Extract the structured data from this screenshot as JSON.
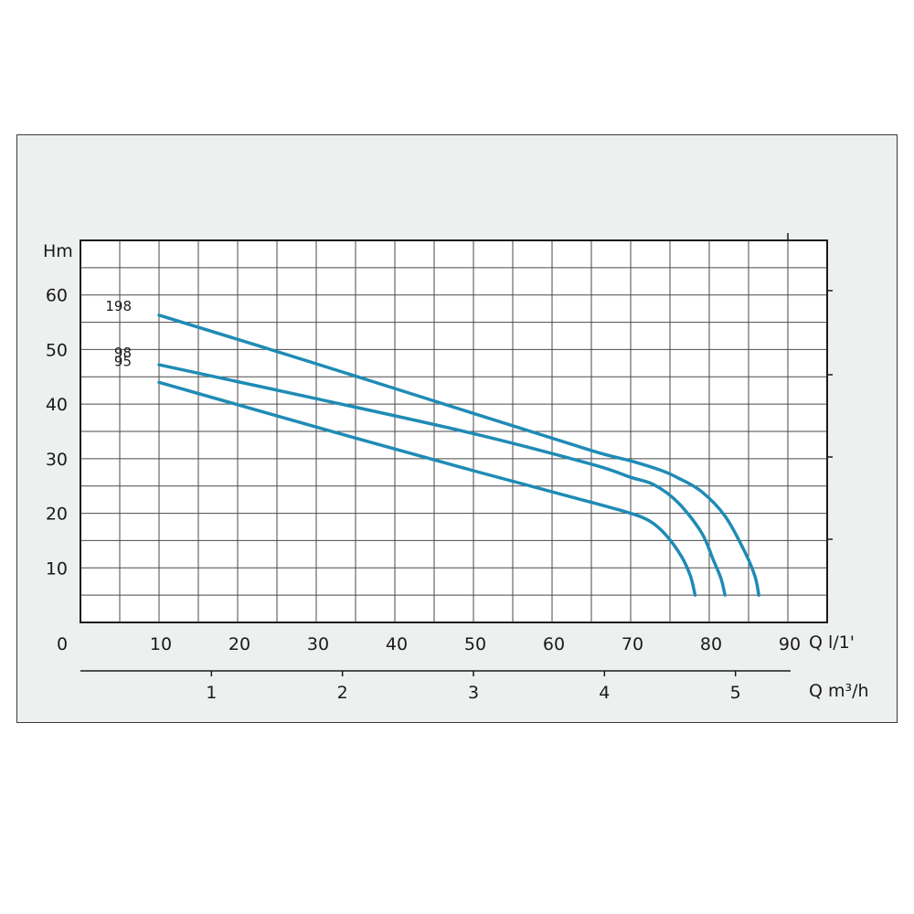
{
  "chart_data": {
    "type": "line",
    "title": "",
    "ylabel": "Hm",
    "xlabel": "Q l/1'",
    "x2label": "Q m³/h",
    "x_origin_label": "0",
    "x_ticks": [
      10,
      20,
      30,
      40,
      50,
      60,
      70,
      80,
      90
    ],
    "y_ticks": [
      10,
      20,
      30,
      40,
      50,
      60
    ],
    "x2_ticks": [
      1,
      2,
      3,
      4,
      5
    ],
    "xlim": [
      0,
      95
    ],
    "ylim": [
      0,
      70
    ],
    "grid": true,
    "line_color": "#1f8bb5",
    "series": [
      {
        "name": "198",
        "points": [
          [
            10,
            56.3
          ],
          [
            30,
            47.4
          ],
          [
            50,
            38.3
          ],
          [
            65,
            31.5
          ],
          [
            70,
            29.6
          ],
          [
            74,
            27.8
          ],
          [
            76,
            26.5
          ],
          [
            79,
            24.0
          ],
          [
            82,
            19.5
          ],
          [
            84.5,
            13.0
          ],
          [
            85.8,
            8.5
          ],
          [
            86.3,
            5.0
          ]
        ]
      },
      {
        "name": "98",
        "points": [
          [
            10,
            47.2
          ],
          [
            30,
            41.0
          ],
          [
            50,
            34.6
          ],
          [
            65,
            29.0
          ],
          [
            70,
            26.6
          ],
          [
            73,
            25.2
          ],
          [
            76,
            22.0
          ],
          [
            79,
            16.5
          ],
          [
            80.5,
            11.5
          ],
          [
            81.5,
            8.0
          ],
          [
            82,
            5.0
          ]
        ]
      },
      {
        "name": "95",
        "points": [
          [
            10,
            44.0
          ],
          [
            30,
            35.8
          ],
          [
            50,
            27.8
          ],
          [
            65,
            22.0
          ],
          [
            70,
            20.0
          ],
          [
            72.5,
            18.5
          ],
          [
            74.5,
            16.0
          ],
          [
            76.5,
            12.0
          ],
          [
            77.6,
            8.5
          ],
          [
            78.2,
            5.0
          ]
        ]
      }
    ]
  }
}
